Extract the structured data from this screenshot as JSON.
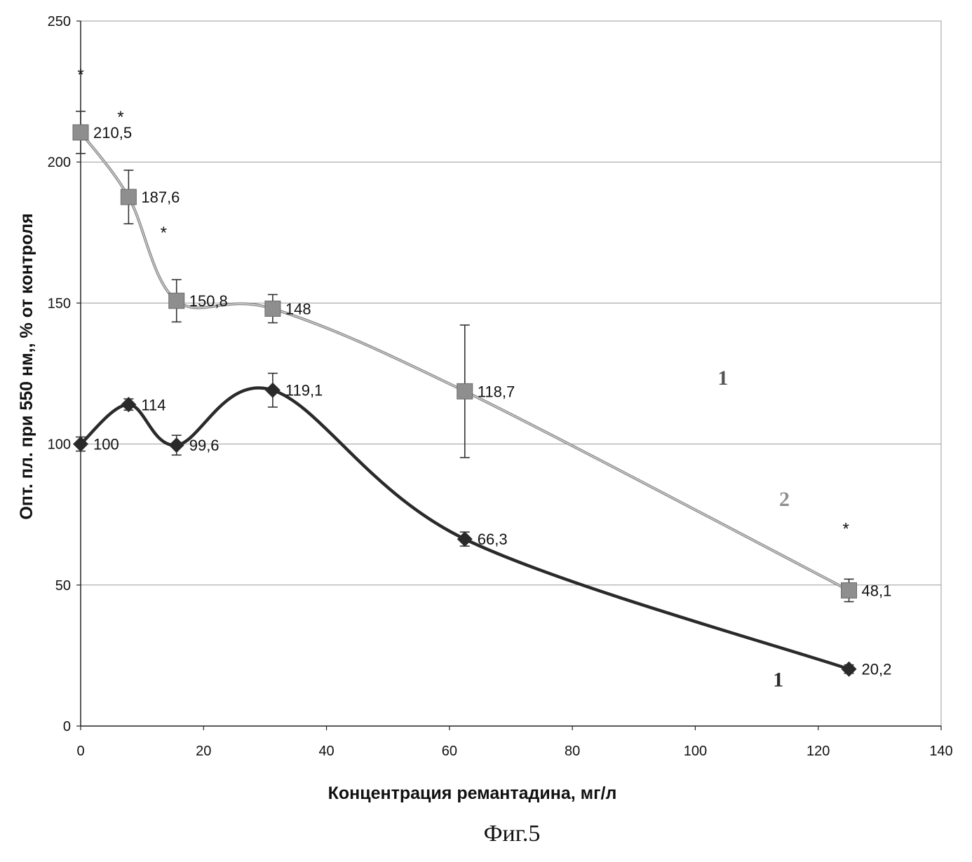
{
  "chart_data": {
    "type": "line",
    "xlabel": "Концентрация ремантадина, мг/л",
    "ylabel": "Опт. пл. при 550 нм,, % от контроля",
    "xlim": [
      0,
      140
    ],
    "ylim": [
      0,
      250
    ],
    "x_ticks": [
      "0",
      "20",
      "40",
      "60",
      "80",
      "100",
      "120",
      "140"
    ],
    "y_ticks": [
      "0",
      "50",
      "100",
      "150",
      "200",
      "250"
    ],
    "grid": "horizontal",
    "x": [
      0,
      7.8,
      15.6,
      31.25,
      62.5,
      125
    ],
    "series": [
      {
        "marker": "square",
        "color": "#8e8e8e",
        "values": [
          210.5,
          187.6,
          150.8,
          148,
          118.7,
          48.1
        ],
        "labels": [
          "210,5",
          "187,6",
          "150,8",
          "148",
          "118,7",
          "48,1"
        ],
        "error": [
          7.5,
          9.5,
          7.5,
          5,
          23.5,
          4
        ]
      },
      {
        "marker": "diamond",
        "color": "#2a2a2a",
        "values": [
          100,
          114,
          99.6,
          119.1,
          66.3,
          20.2
        ],
        "labels": [
          "100",
          "114",
          "99,6",
          "119,1",
          "66,3",
          "20,2"
        ],
        "error": [
          2.5,
          2,
          3.5,
          6,
          2.5,
          1.5
        ]
      }
    ],
    "annotations": [
      {
        "text": "*",
        "x": 0,
        "y": 229
      },
      {
        "text": "*",
        "x": 6.5,
        "y": 214
      },
      {
        "text": "*",
        "x": 13.5,
        "y": 173
      },
      {
        "text": "*",
        "x": 124.5,
        "y": 68
      },
      {
        "text": "1",
        "x": 104.5,
        "y": 121,
        "color": "#555555"
      },
      {
        "text": "2",
        "x": 114.5,
        "y": 78,
        "color": "#8e8e8e"
      },
      {
        "text": "1",
        "x": 113.5,
        "y": 14,
        "color": "#2a2a2a"
      }
    ]
  },
  "caption": "Фиг.5"
}
